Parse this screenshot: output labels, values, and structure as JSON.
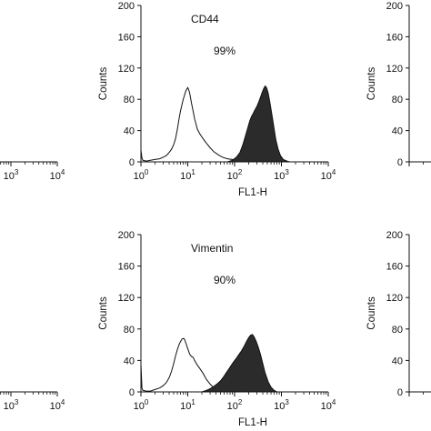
{
  "chart_data": [
    {
      "type": "area",
      "panel": "left-top",
      "title": "",
      "xlabel": "",
      "ylabel": "",
      "xscale": "log",
      "xlim": [
        1,
        10000
      ],
      "ylim": [
        0,
        200
      ],
      "x_ticks": [
        {
          "base": "10",
          "exp": "3"
        },
        {
          "base": "10",
          "exp": "4"
        }
      ],
      "y_ticks": [],
      "annotation": "",
      "percent": "",
      "series": [],
      "partial": true
    },
    {
      "type": "area",
      "panel": "center-top",
      "title": "",
      "xlabel": "FL1-H",
      "ylabel": "Counts",
      "xscale": "log",
      "xlim": [
        1,
        10000
      ],
      "ylim": [
        0,
        200
      ],
      "x_ticks": [
        {
          "base": "10",
          "exp": "0"
        },
        {
          "base": "10",
          "exp": "1"
        },
        {
          "base": "10",
          "exp": "2"
        },
        {
          "base": "10",
          "exp": "3"
        },
        {
          "base": "10",
          "exp": "4"
        }
      ],
      "y_ticks": [
        "0",
        "40",
        "80",
        "120",
        "160",
        "200"
      ],
      "annotation": "CD44",
      "percent": "99%",
      "series": [
        {
          "style": "outline",
          "x": [
            1.0,
            1.05,
            1.1,
            1.3,
            1.6,
            2,
            2.5,
            3,
            3.5,
            4,
            4.5,
            5,
            5.5,
            6,
            6.5,
            7,
            7.5,
            8,
            8.5,
            9,
            9.5,
            10,
            10.5,
            11,
            12,
            13,
            14,
            16,
            18,
            21,
            25,
            30,
            36,
            45,
            55,
            70,
            90,
            120,
            160,
            220,
            300
          ],
          "y": [
            15,
            5,
            2,
            1,
            2,
            3,
            4,
            6,
            8,
            12,
            16,
            22,
            30,
            42,
            55,
            65,
            73,
            80,
            85,
            90,
            93,
            95,
            92,
            88,
            75,
            65,
            55,
            42,
            36,
            30,
            24,
            18,
            13,
            9,
            6,
            4,
            3,
            2,
            1,
            0,
            0
          ]
        },
        {
          "style": "filled",
          "x": [
            70,
            90,
            110,
            130,
            150,
            170,
            190,
            210,
            230,
            250,
            270,
            300,
            330,
            360,
            390,
            420,
            450,
            480,
            520,
            560,
            600,
            650,
            700,
            760,
            850,
            950,
            1100,
            1300,
            1500
          ],
          "y": [
            0,
            2,
            6,
            12,
            22,
            33,
            43,
            52,
            58,
            62,
            66,
            71,
            77,
            83,
            89,
            94,
            97,
            95,
            88,
            78,
            67,
            54,
            42,
            28,
            16,
            8,
            3,
            1,
            0
          ]
        }
      ]
    },
    {
      "type": "area",
      "panel": "right-top",
      "title": "",
      "xlabel": "",
      "ylabel": "Counts",
      "xscale": "log",
      "xlim": [
        1,
        10000
      ],
      "ylim": [
        0,
        200
      ],
      "x_ticks": [],
      "y_ticks": [
        "0",
        "40",
        "80",
        "120",
        "160",
        "200"
      ],
      "annotation": "",
      "percent": "",
      "series": [],
      "partial": true
    },
    {
      "type": "area",
      "panel": "left-bottom",
      "title": "",
      "xlabel": "",
      "ylabel": "",
      "xscale": "log",
      "xlim": [
        1,
        10000
      ],
      "ylim": [
        0,
        200
      ],
      "x_ticks": [
        {
          "base": "10",
          "exp": "3"
        },
        {
          "base": "10",
          "exp": "4"
        }
      ],
      "y_ticks": [],
      "annotation": "",
      "percent": "",
      "series": [],
      "partial": true
    },
    {
      "type": "area",
      "panel": "center-bottom",
      "title": "",
      "xlabel": "FL1-H",
      "ylabel": "Counts",
      "xscale": "log",
      "xlim": [
        1,
        10000
      ],
      "ylim": [
        0,
        200
      ],
      "x_ticks": [
        {
          "base": "10",
          "exp": "0"
        },
        {
          "base": "10",
          "exp": "1"
        },
        {
          "base": "10",
          "exp": "2"
        },
        {
          "base": "10",
          "exp": "3"
        },
        {
          "base": "10",
          "exp": "4"
        }
      ],
      "y_ticks": [
        "0",
        "40",
        "80",
        "120",
        "160",
        "200"
      ],
      "annotation": "Vimentin",
      "percent": "90%",
      "series": [
        {
          "style": "outline",
          "x": [
            1.0,
            1.05,
            1.1,
            1.3,
            1.6,
            2,
            2.5,
            3,
            3.5,
            4,
            4.5,
            5,
            5.5,
            6,
            6.5,
            7,
            7.5,
            8,
            8.5,
            9,
            10,
            11,
            12,
            13,
            14,
            16,
            18,
            21,
            25,
            30,
            36,
            45,
            55,
            70,
            90,
            120
          ],
          "y": [
            35,
            5,
            2,
            1,
            1,
            3,
            5,
            8,
            12,
            18,
            26,
            36,
            46,
            54,
            60,
            64,
            67,
            68,
            67,
            63,
            55,
            48,
            45,
            44,
            40,
            34,
            30,
            24,
            16,
            10,
            5,
            3,
            2,
            1,
            0,
            0
          ]
        },
        {
          "style": "filled",
          "x": [
            20,
            25,
            30,
            36,
            42,
            50,
            58,
            66,
            75,
            85,
            95,
            110,
            125,
            140,
            160,
            180,
            200,
            220,
            240,
            260,
            290,
            320,
            360,
            400,
            450,
            520,
            600,
            700,
            800
          ],
          "y": [
            0,
            2,
            4,
            7,
            10,
            14,
            19,
            24,
            29,
            34,
            38,
            43,
            48,
            52,
            58,
            64,
            69,
            72,
            73,
            70,
            64,
            57,
            47,
            36,
            24,
            13,
            6,
            2,
            0
          ]
        }
      ]
    },
    {
      "type": "area",
      "panel": "right-bottom",
      "title": "",
      "xlabel": "",
      "ylabel": "Counts",
      "xscale": "log",
      "xlim": [
        1,
        10000
      ],
      "ylim": [
        0,
        200
      ],
      "x_ticks": [],
      "y_ticks": [
        "0",
        "40",
        "80",
        "120",
        "160",
        "200"
      ],
      "annotation": "",
      "percent": "",
      "series": [],
      "partial": true
    }
  ],
  "colors": {
    "filled": "#2b2b2b",
    "outline": "#111111",
    "axis": "#111111"
  }
}
